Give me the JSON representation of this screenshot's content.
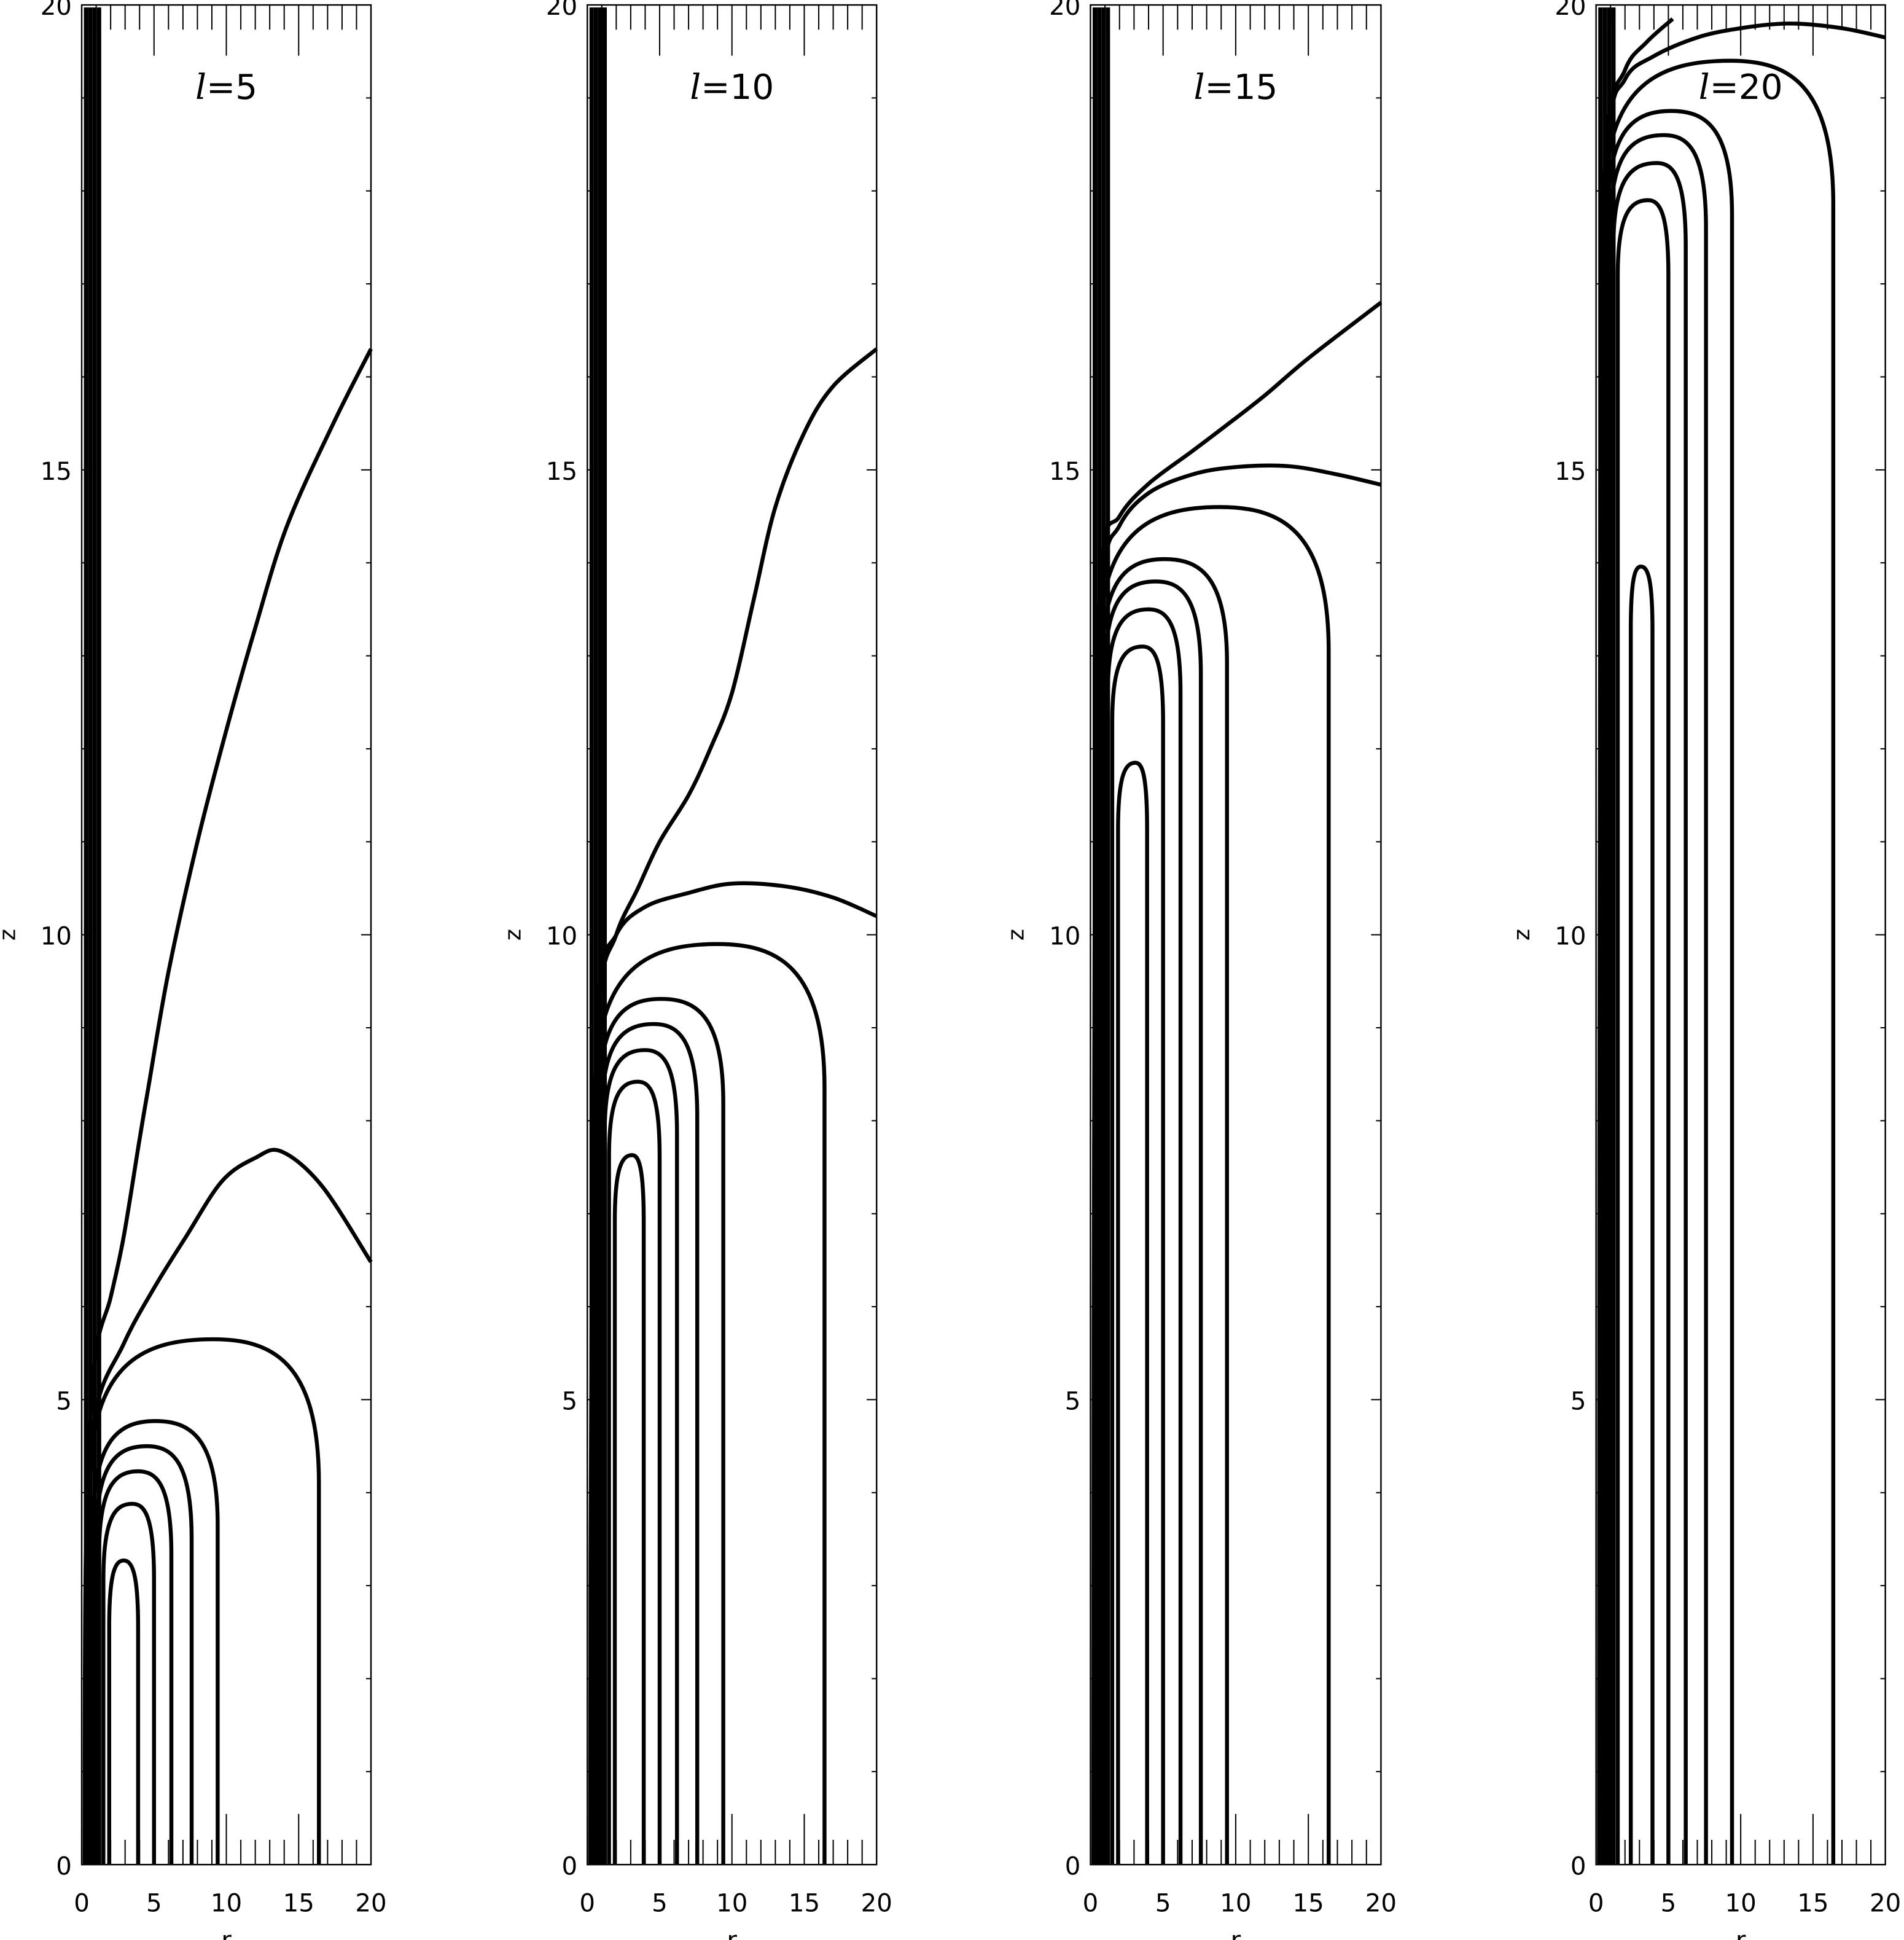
{
  "chart_data": [
    {
      "type": "line",
      "title": "l=5",
      "title_var": "l",
      "title_value": "=5",
      "xlabel": "r",
      "ylabel": "z",
      "xlim": [
        0,
        20
      ],
      "ylim": [
        0,
        20
      ],
      "xticks": [
        "0",
        "5",
        "10",
        "15",
        "20"
      ],
      "yticks": [
        "0",
        "5",
        "10",
        "15",
        "20"
      ],
      "grid": false,
      "verticals": [
        0.3,
        0.6,
        0.9,
        1.2
      ],
      "arches": [
        {
          "r_left": 1.9,
          "r_right": 3.9,
          "r_peak": 2.9,
          "z_top": 3.27
        },
        {
          "r_left": 1.5,
          "r_right": 5.0,
          "r_peak": 3.5,
          "z_top": 3.88
        },
        {
          "r_left": 1.2,
          "r_right": 6.2,
          "r_peak": 3.9,
          "z_top": 4.23
        },
        {
          "r_left": 1.0,
          "r_right": 7.6,
          "r_peak": 4.5,
          "z_top": 4.5
        },
        {
          "r_left": 0.8,
          "r_right": 9.4,
          "r_peak": 5.1,
          "z_top": 4.77
        },
        {
          "r_left": 0.6,
          "r_right": 16.4,
          "r_peak": 9.1,
          "z_top": 5.65
        }
      ],
      "open_curves": [
        [
          [
            0.4,
            0
          ],
          [
            0.5,
            3
          ],
          [
            0.9,
            4.8
          ],
          [
            2.9,
            5.6
          ],
          [
            5,
            6.2
          ],
          [
            7.2,
            6.75
          ],
          [
            9.7,
            7.35
          ],
          [
            12,
            7.6
          ],
          [
            13.8,
            7.67
          ],
          [
            16.6,
            7.3
          ],
          [
            20,
            6.48
          ]
        ],
        [
          [
            0.2,
            0
          ],
          [
            0.3,
            3.5
          ],
          [
            0.9,
            5.4
          ],
          [
            2,
            6.1
          ],
          [
            2.9,
            6.75
          ],
          [
            4,
            7.8
          ],
          [
            4.6,
            8.35
          ],
          [
            6,
            9.6
          ],
          [
            8,
            11.0
          ],
          [
            10,
            12.2
          ],
          [
            12,
            13.3
          ],
          [
            14.2,
            14.4
          ],
          [
            17.4,
            15.5
          ],
          [
            20,
            16.3
          ]
        ]
      ]
    },
    {
      "type": "line",
      "title": "l=10",
      "title_var": "l",
      "title_value": "=10",
      "xlabel": "r",
      "ylabel": "z",
      "xlim": [
        0,
        20
      ],
      "ylim": [
        0,
        20
      ],
      "xticks": [
        "0",
        "5",
        "10",
        "15",
        "20"
      ],
      "yticks": [
        "0",
        "5",
        "10",
        "15",
        "20"
      ],
      "grid": false,
      "verticals": [
        0.3,
        0.6,
        0.9,
        1.2
      ],
      "arches": [
        {
          "r_left": 1.9,
          "r_right": 3.9,
          "r_peak": 3.1,
          "z_top": 7.63
        },
        {
          "r_left": 1.5,
          "r_right": 5.0,
          "r_peak": 3.5,
          "z_top": 8.42
        },
        {
          "r_left": 1.2,
          "r_right": 6.2,
          "r_peak": 4.0,
          "z_top": 8.76
        },
        {
          "r_left": 1.0,
          "r_right": 7.6,
          "r_peak": 4.6,
          "z_top": 9.04
        },
        {
          "r_left": 0.8,
          "r_right": 9.4,
          "r_peak": 5.1,
          "z_top": 9.31
        },
        {
          "r_left": 0.6,
          "r_right": 16.4,
          "r_peak": 9.0,
          "z_top": 9.9
        }
      ],
      "open_curves": [
        [
          [
            0.4,
            0
          ],
          [
            0.5,
            6
          ],
          [
            0.8,
            9.3
          ],
          [
            2,
            10
          ],
          [
            4,
            10.3
          ],
          [
            7,
            10.45
          ],
          [
            10,
            10.55
          ],
          [
            13.7,
            10.52
          ],
          [
            17,
            10.4
          ],
          [
            20,
            10.2
          ]
        ],
        [
          [
            0.2,
            0
          ],
          [
            0.3,
            6
          ],
          [
            0.8,
            9.2
          ],
          [
            2,
            10
          ],
          [
            3.5,
            10.5
          ],
          [
            5,
            11
          ],
          [
            7,
            11.5
          ],
          [
            8.5,
            12
          ],
          [
            10,
            12.6
          ],
          [
            11.5,
            13.6
          ],
          [
            13,
            14.6
          ],
          [
            15,
            15.4
          ],
          [
            17,
            15.9
          ],
          [
            20,
            16.3
          ]
        ]
      ]
    },
    {
      "type": "line",
      "title": "l=15",
      "title_var": "l",
      "title_value": "=15",
      "xlabel": "r",
      "ylabel": "z",
      "xlim": [
        0,
        20
      ],
      "ylim": [
        0,
        20
      ],
      "xticks": [
        "0",
        "5",
        "10",
        "15",
        "20"
      ],
      "yticks": [
        "0",
        "5",
        "10",
        "15",
        "20"
      ],
      "grid": false,
      "verticals": [
        0.3,
        0.6,
        0.9,
        1.2
      ],
      "arches": [
        {
          "r_left": 1.9,
          "r_right": 3.9,
          "r_peak": 3.1,
          "z_top": 11.85
        },
        {
          "r_left": 1.5,
          "r_right": 5.0,
          "r_peak": 3.6,
          "z_top": 13.1
        },
        {
          "r_left": 1.2,
          "r_right": 6.2,
          "r_peak": 4.0,
          "z_top": 13.5
        },
        {
          "r_left": 1.0,
          "r_right": 7.6,
          "r_peak": 4.5,
          "z_top": 13.8
        },
        {
          "r_left": 0.8,
          "r_right": 9.4,
          "r_peak": 5.1,
          "z_top": 14.04
        },
        {
          "r_left": 0.6,
          "r_right": 16.4,
          "r_peak": 8.9,
          "z_top": 14.6
        }
      ],
      "open_curves": [
        [
          [
            0.4,
            0
          ],
          [
            0.5,
            11
          ],
          [
            0.9,
            13.8
          ],
          [
            2,
            14.4
          ],
          [
            4,
            14.75
          ],
          [
            7,
            14.95
          ],
          [
            10,
            15.03
          ],
          [
            13.6,
            15.04
          ],
          [
            17,
            14.95
          ],
          [
            20,
            14.84
          ]
        ],
        [
          [
            0.2,
            0
          ],
          [
            0.3,
            11
          ],
          [
            0.8,
            14
          ],
          [
            2,
            14.5
          ],
          [
            4,
            14.85
          ],
          [
            7,
            15.2
          ],
          [
            9.2,
            15.46
          ],
          [
            12,
            15.8
          ],
          [
            15,
            16.2
          ],
          [
            20,
            16.8
          ]
        ]
      ]
    },
    {
      "type": "line",
      "title": "l=20",
      "title_var": "l",
      "title_value": "=20",
      "xlabel": "r",
      "ylabel": "z",
      "xlim": [
        0,
        20
      ],
      "ylim": [
        0,
        20
      ],
      "xticks": [
        "0",
        "5",
        "10",
        "15",
        "20"
      ],
      "yticks": [
        "0",
        "5",
        "10",
        "15",
        "20"
      ],
      "grid": false,
      "verticals": [
        0.3,
        0.6,
        0.9,
        1.2
      ],
      "arches": [
        {
          "r_left": 2.4,
          "r_right": 3.9,
          "r_peak": 3.1,
          "z_top": 13.96
        },
        {
          "r_left": 1.5,
          "r_right": 5.0,
          "r_peak": 3.6,
          "z_top": 17.9
        },
        {
          "r_left": 1.2,
          "r_right": 6.2,
          "r_peak": 4.2,
          "z_top": 18.3
        },
        {
          "r_left": 1.0,
          "r_right": 7.6,
          "r_peak": 4.7,
          "z_top": 18.6
        },
        {
          "r_left": 0.8,
          "r_right": 9.4,
          "r_peak": 5.2,
          "z_top": 18.86
        },
        {
          "r_left": 0.6,
          "r_right": 16.4,
          "r_peak": 9.3,
          "z_top": 19.4
        }
      ],
      "open_curves": [
        [
          [
            0.4,
            0
          ],
          [
            0.5,
            15
          ],
          [
            0.9,
            18.5
          ],
          [
            2,
            19.2
          ],
          [
            4,
            19.45
          ],
          [
            7,
            19.65
          ],
          [
            10,
            19.75
          ],
          [
            13.4,
            19.8
          ],
          [
            17,
            19.75
          ],
          [
            20,
            19.65
          ]
        ],
        [
          [
            0.2,
            0
          ],
          [
            0.3,
            15
          ],
          [
            0.7,
            18.5
          ],
          [
            2,
            19.3
          ],
          [
            3.5,
            19.6
          ],
          [
            5.3,
            19.85
          ]
        ]
      ]
    }
  ]
}
